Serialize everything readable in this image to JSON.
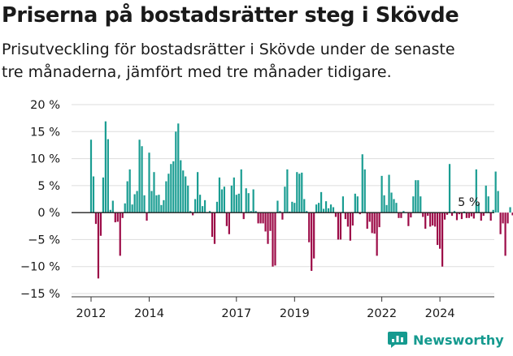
{
  "header": {
    "title": "Priserna på bostadsrätter steg i Skövde",
    "subtitle_line1": "Prisutveckling för bostadsrätter i Skövde under de senaste",
    "subtitle_line2": "tre månaderna, jämfört med tre månader tidigare."
  },
  "brand": {
    "name": "Newsworthy",
    "icon": "newsworthy-logo-icon"
  },
  "colors": {
    "positive": "#1a9d92",
    "negative": "#9c0b47",
    "grid": "#dddddd",
    "text": "#1a1a1a",
    "brand": "#159a8f"
  },
  "chart_data": {
    "type": "bar",
    "title": "Priserna på bostadsrätter steg i Skövde",
    "subtitle": "Prisutveckling för bostadsrätter i Skövde under de senaste tre månaderna, jämfört med tre månader tidigare.",
    "xlabel": "",
    "ylabel": "",
    "ylim": [
      -15,
      20
    ],
    "yticks": [
      -15,
      -10,
      -5,
      0,
      5,
      10,
      15,
      20
    ],
    "ytick_labels": [
      "−15 %",
      "−10 %",
      "−5 %",
      "0 %",
      "5 %",
      "10 %",
      "15 %",
      "20 %"
    ],
    "grid": true,
    "x_start": "2012-01",
    "x_ticks": [
      {
        "label": "2012",
        "index": 0
      },
      {
        "label": "2014",
        "index": 24
      },
      {
        "label": "2017",
        "index": 60
      },
      {
        "label": "2019",
        "index": 84
      },
      {
        "label": "2022",
        "index": 120
      },
      {
        "label": "2024",
        "index": 144
      }
    ],
    "annotation": {
      "text": "5 %",
      "index": 156
    },
    "values": [
      13.5,
      6.7,
      -2.1,
      -12.2,
      -4.3,
      6.5,
      16.9,
      13.6,
      0.5,
      2.2,
      -1.8,
      -1.7,
      -8,
      -1,
      1.7,
      5.8,
      8,
      1.5,
      3.4,
      4,
      13.5,
      12.3,
      3.2,
      -1.5,
      11.1,
      4,
      7.5,
      3.2,
      3.3,
      1.4,
      2.3,
      5.8,
      7.2,
      9,
      9.5,
      15,
      16.5,
      9.7,
      7.8,
      6.7,
      5,
      0.3,
      -0.5,
      2.5,
      7.5,
      3.3,
      1.2,
      2.3,
      0,
      0.3,
      -4.5,
      -5.8,
      2,
      6.5,
      4.3,
      4.8,
      -2.5,
      -4,
      5,
      6.5,
      3.3,
      3.5,
      8,
      -1.2,
      4.5,
      3.6,
      0.3,
      4.3,
      0.3,
      -2,
      -2,
      -2,
      -3.5,
      -5.8,
      -3.4,
      -10,
      -9.8,
      2.2,
      0.3,
      -1.3,
      4.8,
      8,
      0.2,
      2,
      1.8,
      7.5,
      7.2,
      7.4,
      2.5,
      0.3,
      -5.5,
      -10.8,
      -8.5,
      1.5,
      1.8,
      3.8,
      0.7,
      2.1,
      0.8,
      1.5,
      1,
      -0.8,
      -5,
      -5,
      3,
      -1.2,
      -2.6,
      -5.2,
      -2.4,
      3.5,
      3,
      -0.3,
      10.8,
      8,
      -3,
      -1.7,
      -3.8,
      -3.9,
      -8,
      -2.7,
      6.8,
      3.2,
      1.4,
      7,
      3.7,
      2.5,
      1.8,
      -1,
      -1,
      0.3,
      0,
      -2.5,
      -0.9,
      3,
      6,
      6,
      3,
      -0.8,
      -3,
      -0.6,
      -2.6,
      -2.4,
      -2.6,
      -6,
      -6.7,
      -10,
      -1.3,
      -0.4,
      9,
      -0.6,
      0.3,
      -1.4,
      -0.3,
      -1.2,
      0.2,
      -1,
      -1,
      -0.7,
      -1.1,
      8,
      1.7,
      -1.5,
      -0.6,
      5,
      3,
      -1.5,
      0.5,
      7.6,
      4,
      -4,
      -2,
      -8,
      -2,
      1,
      -0.5,
      0.7,
      -2,
      5
    ]
  }
}
